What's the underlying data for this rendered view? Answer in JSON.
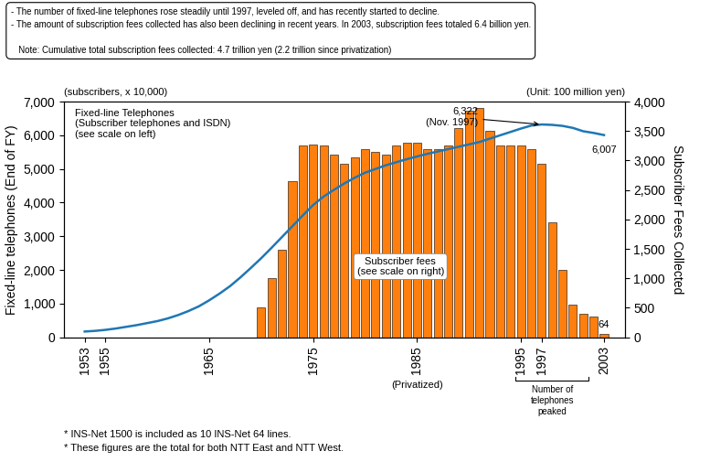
{
  "chart_data": {
    "type": "combo",
    "x": [
      1953,
      1954,
      1955,
      1956,
      1957,
      1958,
      1959,
      1960,
      1961,
      1962,
      1963,
      1964,
      1965,
      1966,
      1967,
      1968,
      1969,
      1970,
      1971,
      1972,
      1973,
      1974,
      1975,
      1976,
      1977,
      1978,
      1979,
      1980,
      1981,
      1982,
      1983,
      1984,
      1985,
      1986,
      1987,
      1988,
      1989,
      1990,
      1991,
      1992,
      1993,
      1994,
      1995,
      1996,
      1997,
      1998,
      1999,
      2000,
      2001,
      2002,
      2003
    ],
    "xlim": [
      1951,
      2005
    ],
    "xticks": [
      1953,
      1955,
      1965,
      1975,
      1985,
      1995,
      1997,
      2003
    ],
    "ylim": [
      0,
      7000
    ],
    "yticks": [
      0,
      {
        "value": 1000,
        "label": "1,000"
      },
      {
        "value": 2000,
        "label": "2,000"
      },
      {
        "value": 3000,
        "label": "3,000"
      },
      {
        "value": 4000,
        "label": "4,000"
      },
      {
        "value": 5000,
        "label": "5,000"
      },
      {
        "value": 6000,
        "label": "6,000"
      },
      {
        "value": 7000,
        "label": "7,000"
      }
    ],
    "y2lim": [
      0,
      4000
    ],
    "y2ticks": [
      0,
      500,
      {
        "value": 1000,
        "label": "1,000"
      },
      {
        "value": 1500,
        "label": "1,500"
      },
      {
        "value": 2000,
        "label": "2,000"
      },
      {
        "value": 2500,
        "label": "2,500"
      },
      {
        "value": 3000,
        "label": "3,000"
      },
      {
        "value": 3500,
        "label": "3,500"
      },
      {
        "value": 4000,
        "label": "4,000"
      }
    ],
    "ylabel": "Fixed-line telephones (End of FY)",
    "y2label": "Subscriber Fees Collected",
    "y_units": "(subscribers, x 10,000)",
    "y2_units": "(Unit: 100 million yen)",
    "grid": false,
    "series": [
      {
        "type": "line",
        "values": [
          170,
          190,
          220,
          260,
          310,
          360,
          420,
          480,
          560,
          660,
          780,
          920,
          1100,
          1300,
          1520,
          1780,
          2060,
          2350,
          2660,
          2980,
          3300,
          3620,
          3930,
          4180,
          4380,
          4570,
          4740,
          4890,
          5000,
          5110,
          5200,
          5290,
          5370,
          5450,
          5520,
          5590,
          5660,
          5730,
          5800,
          5900,
          6000,
          6100,
          6200,
          6290,
          6322,
          6310,
          6280,
          6220,
          6120,
          6070,
          6007
        ],
        "value_labels": [
          null,
          null,
          null,
          null,
          null,
          null,
          null,
          null,
          null,
          null,
          null,
          null,
          null,
          null,
          null,
          null,
          null,
          null,
          null,
          null,
          null,
          null,
          null,
          null,
          null,
          null,
          null,
          null,
          null,
          null,
          null,
          null,
          null,
          null,
          null,
          null,
          null,
          null,
          null,
          null,
          null,
          null,
          null,
          null,
          "6,322\n(Nov. 1997)",
          null,
          null,
          null,
          null,
          null,
          "6,007"
        ]
      },
      {
        "type": "bar",
        "axis": "y2",
        "values": [
          null,
          null,
          null,
          null,
          null,
          null,
          null,
          null,
          null,
          null,
          null,
          null,
          null,
          null,
          null,
          null,
          null,
          500,
          1000,
          1480,
          2650,
          3250,
          3270,
          3250,
          3100,
          2950,
          3050,
          3200,
          3150,
          3100,
          3250,
          3300,
          3300,
          3200,
          3200,
          3250,
          3550,
          3850,
          3900,
          3500,
          3250,
          3250,
          3250,
          3200,
          2950,
          1950,
          1150,
          550,
          400,
          350,
          64
        ],
        "value_labels": [
          null,
          null,
          null,
          null,
          null,
          null,
          null,
          null,
          null,
          null,
          null,
          null,
          null,
          null,
          null,
          null,
          null,
          null,
          null,
          null,
          null,
          null,
          null,
          null,
          null,
          null,
          null,
          null,
          null,
          null,
          null,
          null,
          null,
          null,
          null,
          null,
          null,
          null,
          null,
          null,
          null,
          null,
          null,
          null,
          null,
          null,
          null,
          null,
          null,
          null,
          "64"
        ]
      }
    ],
    "annotations": [
      {
        "text": "Fixed-line Telephones\n(Subscriber telephones and ISDN)\n(see scale on left)"
      },
      {
        "text": "Subscriber fees\n(see scale on right)"
      },
      {
        "text": "(Privatized)",
        "x": 1985
      },
      {
        "text": "Number of\ntelephones\npeaked",
        "x": [
          1994.5,
          2001.5
        ]
      }
    ],
    "note": "- The number of fixed-line telephones rose steadily until 1997, leveled off, and has recently started to decline.\n- The amount of subscription fees collected has also been declining in recent years. In 2003, subscription fees totaled 6.4 billion yen.\n\n   Note: Cumulative total subscription fees collected: 4.7 trillion yen (2.2 trillion since privatization)",
    "footnotes": [
      "* INS-Net 1500 is included as 10 INS-Net 64 lines.",
      "* These figures are the total for both NTT East and NTT West."
    ]
  }
}
